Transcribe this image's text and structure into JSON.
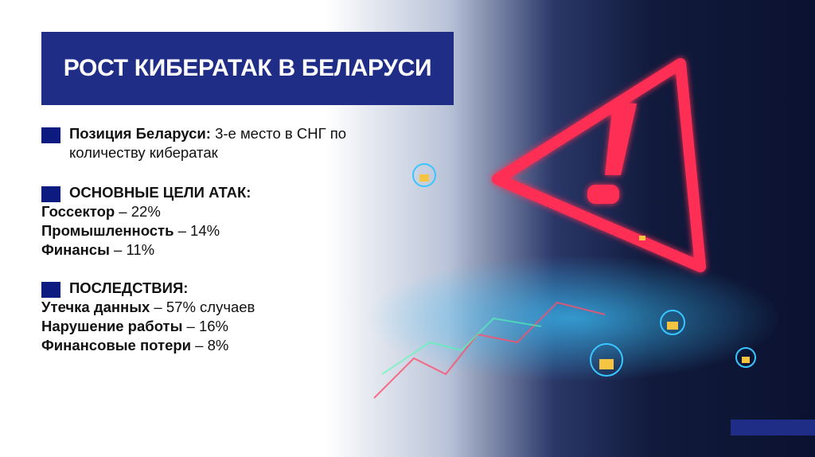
{
  "title": "РОСТ КИБЕРАТАК В БЕЛАРУСИ",
  "position": {
    "label": "Позиция Беларуси:",
    "text": " 3-е место в СНГ по",
    "text2": "количеству кибератак"
  },
  "targets": {
    "heading": "ОСНОВНЫЕ ЦЕЛИ АТАК:",
    "items": [
      {
        "label": "Госсектор",
        "value": " – 22%"
      },
      {
        "label": "Промышленность",
        "value": " – 14%"
      },
      {
        "label": "Финансы",
        "value": " – 11%"
      }
    ]
  },
  "consequences": {
    "heading": "ПОСЛЕДСТВИЯ:",
    "items": [
      {
        "label": "Утечка данных",
        "value": " – 57% случаев"
      },
      {
        "label": "Нарушение работы",
        "value": " – 16%"
      },
      {
        "label": "Финансовые потери",
        "value": " – 8%"
      }
    ]
  },
  "colors": {
    "accent": "#1f2d86",
    "bullet": "#0d1a80",
    "warning": "#ff3355",
    "lock": "#f5c542"
  }
}
